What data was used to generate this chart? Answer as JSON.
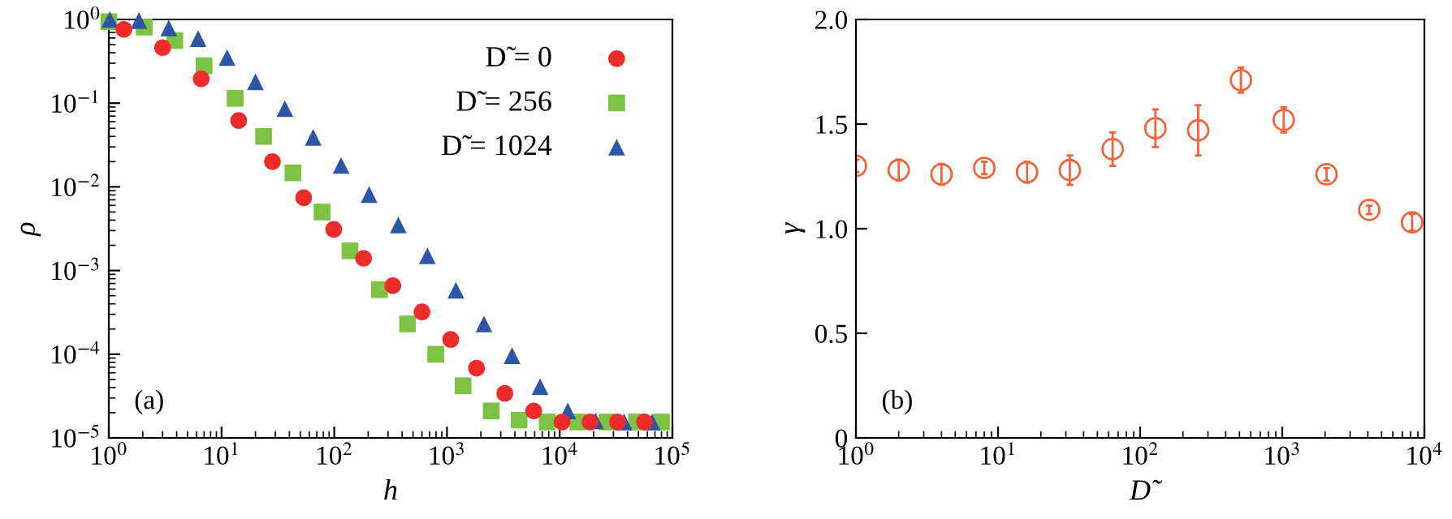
{
  "chart_data": [
    {
      "type": "scatter",
      "log": "xy",
      "xlabel": "h",
      "ylabel": "ρ",
      "legend": "top right",
      "grid": false,
      "xlim": [
        1,
        100000
      ],
      "ylim": [
        1e-05,
        1
      ],
      "xticks": [
        {
          "value": 1,
          "label": "10$^{0}$"
        },
        {
          "value": 10,
          "label": "10$^{1}$"
        },
        {
          "value": 100,
          "label": "10$^{2}$"
        },
        {
          "value": 1000,
          "label": "10$^{3}$"
        },
        {
          "value": 10000,
          "label": "10$^{4}$"
        },
        {
          "value": 100000,
          "label": "10$^{5}$"
        }
      ],
      "yticks": [
        {
          "value": 1e-05,
          "label": "10$^{−5}$"
        },
        {
          "value": 0.0001,
          "label": "10$^{−4}$"
        },
        {
          "value": 0.001,
          "label": "10$^{−3}$"
        },
        {
          "value": 0.01,
          "label": "10$^{−2}$"
        },
        {
          "value": 0.1,
          "label": "10$^{−1}$"
        },
        {
          "value": 1,
          "label": "10$^{0}$"
        }
      ],
      "annotations": [
        "(a)"
      ],
      "series": [
        {
          "name": "D̃ = 0",
          "color": "#ee2b2b",
          "marker": "circle",
          "x": [
            1.36,
            3.0,
            6.6,
            14.2,
            28.3,
            53.6,
            99,
            182,
            331,
            600,
            1080,
            1830,
            3260,
            5880,
            10500,
            18600,
            32600,
            56600
          ],
          "values": [
            0.76,
            0.46,
            0.195,
            0.062,
            0.02,
            0.0074,
            0.0031,
            0.0014,
            0.00066,
            0.00032,
            0.00015,
            6.8e-05,
            3.4e-05,
            2.1e-05,
            1.55e-05,
            1.55e-05,
            1.55e-05,
            1.55e-05
          ]
        },
        {
          "name": "D̃ = 256",
          "color": "#7dc242",
          "marker": "square",
          "x": [
            1.0,
            2.06,
            3.85,
            7.0,
            13.2,
            23.6,
            43,
            78,
            138,
            252,
            447,
            795,
            1390,
            2470,
            4370,
            7750,
            14500,
            26300,
            48000,
            80000
          ],
          "values": [
            0.94,
            0.81,
            0.56,
            0.28,
            0.114,
            0.04,
            0.0147,
            0.005,
            0.00172,
            0.00059,
            0.00023,
            0.0001,
            4.2e-05,
            2.1e-05,
            1.63e-05,
            1.55e-05,
            1.55e-05,
            1.55e-05,
            1.55e-05,
            1.55e-05
          ]
        },
        {
          "name": "D̃ = 1024",
          "color": "#2e56a6",
          "marker": "triangle",
          "x": [
            1.02,
            1.85,
            3.4,
            6.2,
            11.2,
            20,
            36.5,
            65,
            115,
            204,
            370,
            670,
            1200,
            2130,
            3780,
            6700,
            11800,
            20800,
            37300,
            66000
          ],
          "values": [
            1.0,
            0.97,
            0.79,
            0.59,
            0.35,
            0.18,
            0.086,
            0.039,
            0.018,
            0.0081,
            0.0035,
            0.0015,
            0.00058,
            0.00023,
            9.6e-05,
            4.1e-05,
            2.1e-05,
            1.6e-05,
            1.55e-05,
            1.55e-05
          ]
        }
      ]
    },
    {
      "type": "scatter",
      "log": "x",
      "xlabel": "D̃",
      "ylabel": "γ",
      "legend": false,
      "grid": false,
      "xlim": [
        1,
        10000
      ],
      "ylim": [
        0,
        2.0
      ],
      "xticks": [
        {
          "value": 1,
          "label": "10$^{0}$"
        },
        {
          "value": 10,
          "label": "10$^{1}$"
        },
        {
          "value": 100,
          "label": "10$^{2}$"
        },
        {
          "value": 1000,
          "label": "10$^{3}$"
        },
        {
          "value": 10000,
          "label": "10$^{4}$"
        }
      ],
      "yticks": [
        0,
        0.5,
        {
          "value": 1.0,
          "label": "1.0"
        },
        1.5,
        {
          "value": 2.0,
          "label": "2.0"
        }
      ],
      "annotations": [
        "(b)"
      ],
      "series": [
        {
          "color": "#f0643c",
          "marker": "circle",
          "x": [
            1,
            2,
            4,
            8,
            16,
            32,
            64,
            128,
            256,
            512,
            1024,
            2048,
            4096,
            8192
          ],
          "values": [
            1.3,
            1.28,
            1.26,
            1.29,
            1.27,
            1.28,
            1.38,
            1.48,
            1.47,
            1.71,
            1.52,
            1.26,
            1.09,
            1.03
          ],
          "errors": [
            0.03,
            0.05,
            0.05,
            0.03,
            0.05,
            0.07,
            0.08,
            0.09,
            0.12,
            0.06,
            0.06,
            0.03,
            0.02,
            0.04
          ]
        }
      ]
    }
  ]
}
